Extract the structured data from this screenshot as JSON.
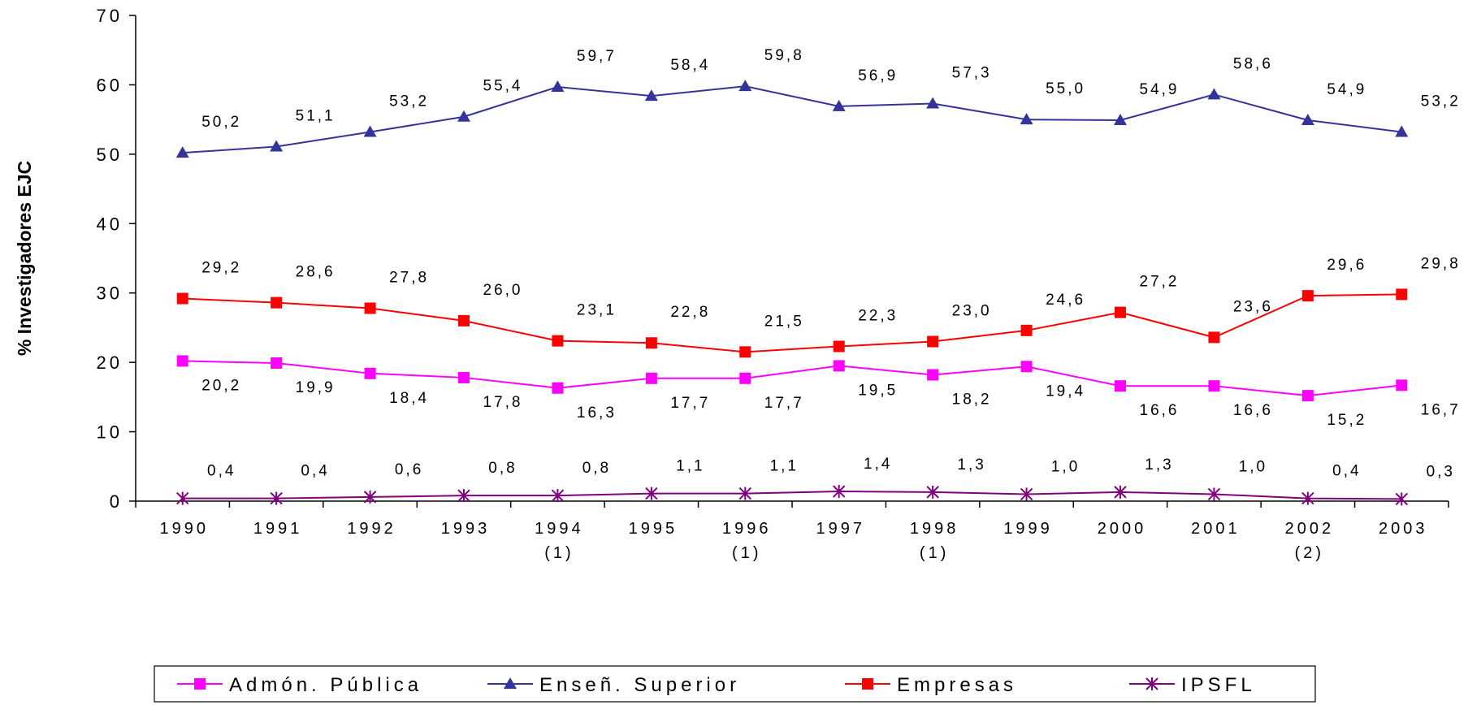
{
  "chart_data": {
    "type": "line",
    "y_label": "% Investigadores EJC",
    "categories": [
      "1990",
      "1991",
      "1992",
      "1993",
      "1994\n(1)",
      "1995",
      "1996\n(1)",
      "1997",
      "1998\n(1)",
      "1999",
      "2000",
      "2001",
      "2002\n(2)",
      "2003"
    ],
    "ylim": [
      0,
      70
    ],
    "yticks": [
      0,
      10,
      20,
      30,
      40,
      50,
      60,
      70
    ],
    "grid": false,
    "legend": "bottom",
    "series": [
      {
        "name": "Admón. Pública",
        "color": "#ff00ff",
        "marker": "square",
        "values": [
          20.2,
          19.9,
          18.4,
          17.8,
          16.3,
          17.7,
          17.7,
          19.5,
          18.2,
          19.4,
          16.6,
          16.6,
          15.2,
          16.7
        ],
        "value_labels": [
          "20,2",
          "19,9",
          "18,4",
          "17,8",
          "16,3",
          "17,7",
          "17,7",
          "19,5",
          "18,2",
          "19,4",
          "16,6",
          "16,6",
          "15,2",
          "16,7"
        ]
      },
      {
        "name": "Enseñ. Superior",
        "color": "#333399",
        "marker": "triangle",
        "values": [
          50.2,
          51.1,
          53.2,
          55.4,
          59.7,
          58.4,
          59.8,
          56.9,
          57.3,
          55.0,
          54.9,
          58.6,
          54.9,
          53.2
        ],
        "value_labels": [
          "50,2",
          "51,1",
          "53,2",
          "55,4",
          "59,7",
          "58,4",
          "59,8",
          "56,9",
          "57,3",
          "55,0",
          "54,9",
          "58,6",
          "54,9",
          "53,2"
        ]
      },
      {
        "name": "Empresas",
        "color": "#ff0000",
        "marker": "square",
        "values": [
          29.2,
          28.6,
          27.8,
          26.0,
          23.1,
          22.8,
          21.5,
          22.3,
          23.0,
          24.6,
          27.2,
          23.6,
          29.6,
          29.8
        ],
        "value_labels": [
          "29,2",
          "28,6",
          "27,8",
          "26,0",
          "23,1",
          "22,8",
          "21,5",
          "22,3",
          "23,0",
          "24,6",
          "27,2",
          "23,6",
          "29,6",
          "29,8"
        ]
      },
      {
        "name": "IPSFL",
        "color": "#800080",
        "marker": "star",
        "values": [
          0.4,
          0.4,
          0.6,
          0.8,
          0.8,
          1.1,
          1.1,
          1.4,
          1.3,
          1.0,
          1.3,
          1.0,
          0.4,
          0.3
        ],
        "value_labels": [
          "0,4",
          "0,4",
          "0,6",
          "0,8",
          "0,8",
          "1,1",
          "1,1",
          "1,4",
          "1,3",
          "1,0",
          "1,3",
          "1,0",
          "0,4",
          "0,3"
        ]
      }
    ]
  }
}
